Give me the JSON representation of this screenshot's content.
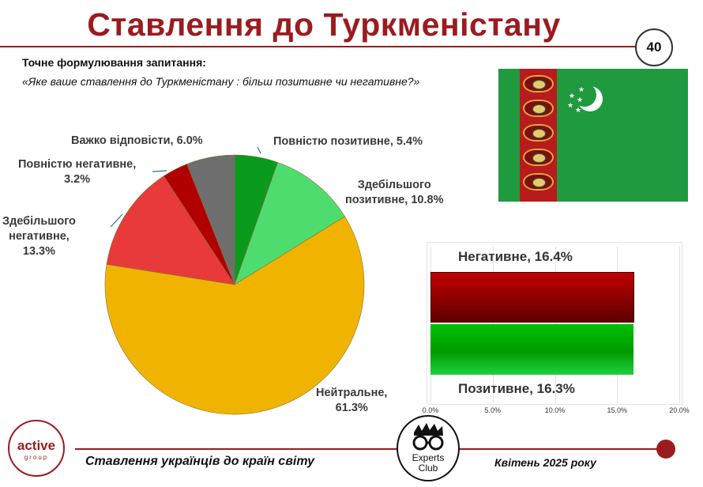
{
  "header": {
    "title": "Ставлення до Туркменістану",
    "page_number": "40"
  },
  "question": {
    "label": "Точне формулювання запитання:",
    "text": "«Яке ваше ставлення до Туркменістану : більш позитивне чи негативне?»"
  },
  "pie_labels": {
    "fully_positive": [
      "Повністю позитивне, 5.4%"
    ],
    "mostly_positive": [
      "Здебільшого",
      "позитивне, 10.8%"
    ],
    "neutral": [
      "Нейтральне,",
      "61.3%"
    ],
    "mostly_negative": [
      "Здебільшого",
      "негативне,",
      "13.3%"
    ],
    "fully_negative": [
      "Повністю негативне,",
      "3.2%"
    ],
    "hard_to_say": [
      "Важко відповісти, 6.0%"
    ]
  },
  "bar_labels": {
    "negative": "Негативне, 16.4%",
    "positive": "Позитивне, 16.3%"
  },
  "footer": {
    "left_text": "Ставлення українців до країн світу",
    "right_text": "Квітень 2025 року",
    "logo_name": "active",
    "logo_sub": "group",
    "club_line1": "Experts",
    "club_line2": "Club"
  },
  "flag": {
    "country": "Turkmenistan",
    "colors": {
      "field": "#1f9a3f",
      "stripe": "#b71c1c",
      "emblem": "#ffffff"
    }
  },
  "chart_data": [
    {
      "type": "pie",
      "categories": [
        "Повністю позитивне",
        "Здебільшого позитивне",
        "Нейтральне",
        "Здебільшого негативне",
        "Повністю негативне",
        "Важко відповісти"
      ],
      "values": [
        5.4,
        10.8,
        61.3,
        13.3,
        3.2,
        6.0
      ],
      "unit": "%",
      "start": "12 o'clock, clockwise",
      "colors": [
        "#0a9a1e",
        "#4fdc6e",
        "#f0b400",
        "#e83a3a",
        "#b00000",
        "#6e6e6e"
      ]
    },
    {
      "type": "bar",
      "orientation": "horizontal",
      "categories": [
        "Негативне",
        "Позитивне"
      ],
      "values": [
        16.4,
        16.3
      ],
      "unit": "%",
      "xlim": [
        0,
        20
      ],
      "ticks": [
        "0.0%",
        "5.0%",
        "10.0%",
        "15.0%",
        "20.0%"
      ],
      "colors": [
        "#b00000",
        "#00b000"
      ],
      "grid": true
    }
  ]
}
